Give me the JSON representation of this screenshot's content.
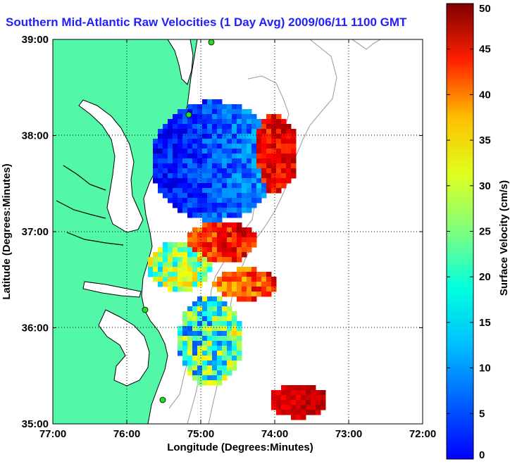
{
  "title": "Southern Mid-Atlantic Raw Velocities (1 Day Avg) 2009/06/11 1100 GMT",
  "x_axis": {
    "label": "Longitude (Degrees:Minutes)",
    "ticks": [
      "77:00",
      "76:00",
      "75:00",
      "74:00",
      "73:00",
      "72:00"
    ],
    "range": [
      -77,
      -72
    ]
  },
  "y_axis": {
    "label": "Latitude (Degrees:Minutes)",
    "ticks": [
      "39:00",
      "38:00",
      "37:00",
      "36:00",
      "35:00"
    ],
    "range": [
      35,
      39
    ]
  },
  "colorbar": {
    "label": "Surface Velocity (cm/s)",
    "ticks": [
      "50",
      "45",
      "40",
      "35",
      "30",
      "25",
      "20",
      "15",
      "10",
      "5",
      "0"
    ],
    "range": [
      0,
      50
    ],
    "colormap": "jet"
  },
  "colors": {
    "land": "#52f7a8",
    "coast": "#000000",
    "bathymetry": "#a0a0a0",
    "stations": "#22dd22",
    "title": "#1f1fff"
  },
  "grid": true
}
